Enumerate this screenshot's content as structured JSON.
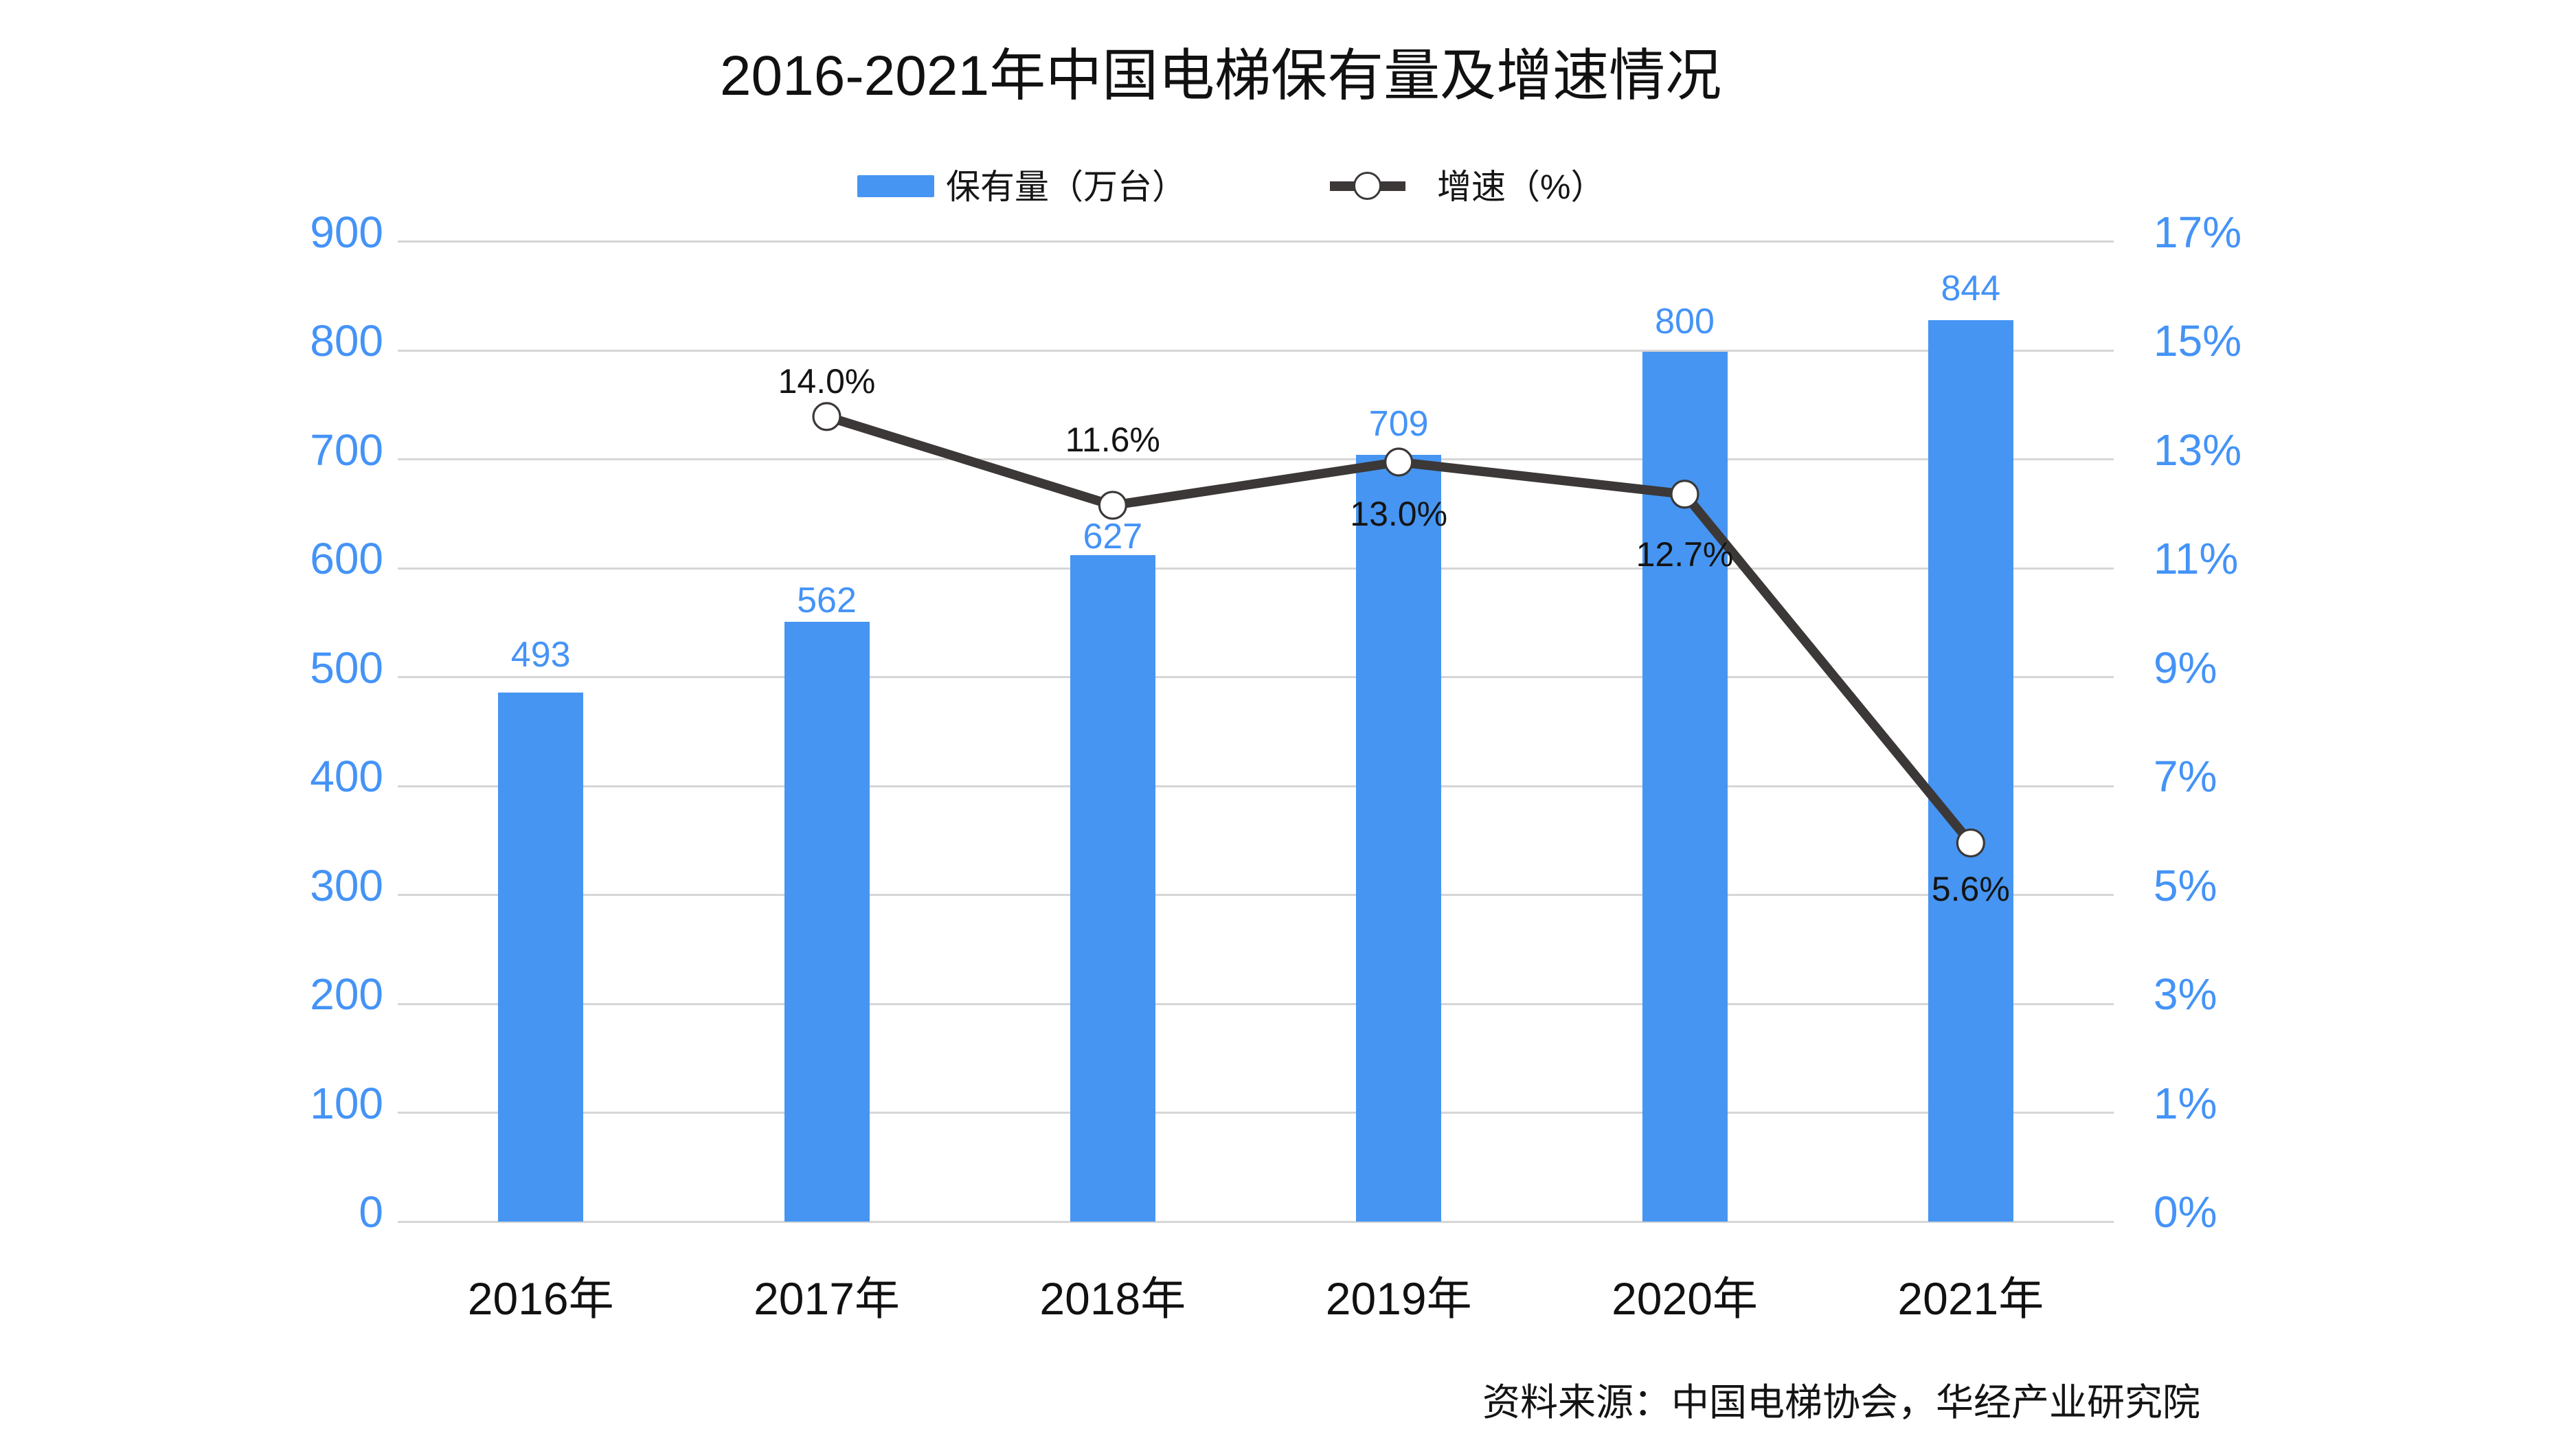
{
  "title": "2016-2021年中国电梯保有量及增速情况",
  "legend": {
    "bar_label": "保有量（万台）",
    "line_label": "增速（%）"
  },
  "colors": {
    "bar_blue": "#4695F2",
    "axis_blue": "#4493F7",
    "line_dark": "#3B3837",
    "gridline": "#D6D6D6"
  },
  "axes": {
    "left_ticks": [
      "900",
      "800",
      "700",
      "600",
      "500",
      "400",
      "300",
      "200",
      "100",
      "0"
    ],
    "right_ticks": [
      "17%",
      "15%",
      "13%",
      "11%",
      "9%",
      "7%",
      "5%",
      "3%",
      "1%",
      "0%"
    ]
  },
  "source_note": "资料来源：中国电梯协会，华经产业研究院",
  "chart_data": {
    "type": "bar+line",
    "categories": [
      "2016年",
      "2017年",
      "2018年",
      "2019年",
      "2020年",
      "2021年"
    ],
    "series": [
      {
        "name": "保有量（万台）",
        "type": "bar",
        "values": [
          493,
          562,
          627,
          709,
          800,
          844
        ],
        "labels": [
          "493",
          "562",
          "627",
          "709",
          "800",
          "844"
        ]
      },
      {
        "name": "增速（%）",
        "type": "line",
        "values": [
          null,
          14.0,
          11.6,
          13.0,
          12.7,
          5.6
        ],
        "labels": [
          null,
          "14.0%",
          "11.6%",
          "13.0%",
          "12.7%",
          "5.6%"
        ]
      }
    ],
    "left_axis": {
      "min": 0,
      "max": 900,
      "tick_step": 100
    },
    "right_axis": {
      "ticks_pct": [
        0,
        1,
        3,
        5,
        7,
        9,
        11,
        13,
        15,
        17
      ]
    },
    "grid": true,
    "legend_position": "top"
  }
}
